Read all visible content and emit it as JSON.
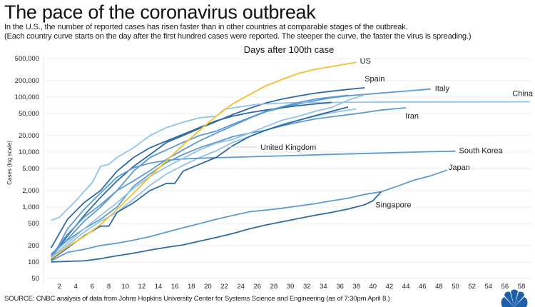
{
  "title": "The pace of the coronavirus outbreak",
  "subtitle_1": "In the U.S., the number of reported cases has risen faster than in other countries at comparable stages of the outbreak.",
  "subtitle_2": "(Each country curve starts on the day after the first hundred cases were reported. The steeper the curve, the faster the virus is spreading.)",
  "source": "SOURCE: CNBC analysis of data from Johns Hopkins University Center for Systems Science and Engineering (as of 7:30pm April 8.)",
  "logo": "NBC peacock",
  "chart_data": {
    "type": "line",
    "title": "Days after 100th case",
    "xlabel": "Days after 100th case",
    "ylabel": "Cases (log scale)",
    "y_scale": "log",
    "ylim": [
      50,
      500000
    ],
    "xlim": [
      0,
      59
    ],
    "grid": true,
    "y_ticks": [
      50,
      100,
      200,
      500,
      1000,
      2000,
      5000,
      10000,
      20000,
      50000,
      100000,
      200000,
      500000
    ],
    "y_tick_labels": [
      "50",
      "100",
      "200",
      "500",
      "1,000",
      "2,000",
      "5,000",
      "10,000",
      "20,000",
      "50,000",
      "100,000",
      "200,000",
      "500,000"
    ],
    "x_ticks": [
      2,
      4,
      6,
      8,
      10,
      12,
      14,
      16,
      18,
      20,
      22,
      24,
      26,
      28,
      30,
      32,
      34,
      36,
      38,
      40,
      42,
      44,
      46,
      48,
      50,
      52,
      54,
      56,
      58
    ],
    "colors": {
      "highlight": "#f2c33c",
      "dark": "#2f6aa3",
      "mid": "#5d9bd0",
      "light": "#92c3e8"
    },
    "series": [
      {
        "name": "US",
        "color": "#f2c33c",
        "points": [
          [
            1,
            115
          ],
          [
            3,
            190
          ],
          [
            5,
            290
          ],
          [
            7,
            480
          ],
          [
            9,
            900
          ],
          [
            11,
            1800
          ],
          [
            13,
            3600
          ],
          [
            15,
            7000
          ],
          [
            17,
            13500
          ],
          [
            19,
            25000
          ],
          [
            21,
            45000
          ],
          [
            23,
            75000
          ],
          [
            25,
            110000
          ],
          [
            27,
            160000
          ],
          [
            29,
            210000
          ],
          [
            31,
            270000
          ],
          [
            33,
            320000
          ],
          [
            35,
            360000
          ],
          [
            38,
            430000
          ]
        ]
      },
      {
        "name": "Spain",
        "color": "#2f6aa3",
        "points": [
          [
            1,
            120
          ],
          [
            3,
            300
          ],
          [
            5,
            700
          ],
          [
            7,
            1500
          ],
          [
            9,
            3000
          ],
          [
            11,
            5500
          ],
          [
            13,
            9000
          ],
          [
            15,
            15000
          ],
          [
            17,
            20000
          ],
          [
            19,
            27000
          ],
          [
            21,
            36000
          ],
          [
            23,
            48000
          ],
          [
            25,
            62000
          ],
          [
            27,
            78000
          ],
          [
            29,
            92000
          ],
          [
            31,
            105000
          ],
          [
            33,
            118000
          ],
          [
            35,
            128000
          ],
          [
            37,
            138000
          ],
          [
            39,
            148000
          ]
        ]
      },
      {
        "name": "Italy",
        "color": "#5d9bd0",
        "points": [
          [
            1,
            130
          ],
          [
            3,
            320
          ],
          [
            5,
            650
          ],
          [
            7,
            1100
          ],
          [
            9,
            2000
          ],
          [
            11,
            3000
          ],
          [
            13,
            4600
          ],
          [
            15,
            7400
          ],
          [
            17,
            11000
          ],
          [
            19,
            16000
          ],
          [
            21,
            22000
          ],
          [
            23,
            30000
          ],
          [
            25,
            41000
          ],
          [
            27,
            54000
          ],
          [
            29,
            64000
          ],
          [
            31,
            75000
          ],
          [
            33,
            86000
          ],
          [
            35,
            97000
          ],
          [
            37,
            106000
          ],
          [
            40,
            115000
          ],
          [
            43,
            125000
          ],
          [
            47,
            140000
          ]
        ]
      },
      {
        "name": "China",
        "color": "#92c3e8",
        "points": [
          [
            1,
            570
          ],
          [
            2,
            650
          ],
          [
            4,
            1300
          ],
          [
            6,
            2800
          ],
          [
            7,
            5500
          ],
          [
            8,
            6000
          ],
          [
            9,
            8000
          ],
          [
            11,
            12000
          ],
          [
            13,
            20000
          ],
          [
            15,
            28000
          ],
          [
            17,
            35000
          ],
          [
            19,
            42000
          ],
          [
            21,
            45000
          ],
          [
            22,
            60000
          ],
          [
            24,
            67000
          ],
          [
            26,
            74000
          ],
          [
            30,
            79000
          ],
          [
            40,
            81000
          ],
          [
            59,
            82000
          ]
        ]
      },
      {
        "name": "Iran",
        "color": "#5d9bd0",
        "points": [
          [
            1,
            140
          ],
          [
            3,
            250
          ],
          [
            5,
            400
          ],
          [
            7,
            600
          ],
          [
            9,
            1000
          ],
          [
            11,
            2400
          ],
          [
            13,
            4000
          ],
          [
            15,
            6500
          ],
          [
            17,
            9000
          ],
          [
            19,
            12000
          ],
          [
            21,
            15000
          ],
          [
            23,
            19000
          ],
          [
            25,
            22000
          ],
          [
            27,
            25000
          ],
          [
            29,
            30000
          ],
          [
            31,
            35000
          ],
          [
            33,
            40000
          ],
          [
            35,
            44000
          ],
          [
            38,
            50000
          ],
          [
            41,
            58000
          ],
          [
            44,
            64000
          ]
        ]
      },
      {
        "name": "United Kingdom",
        "color": "#92c3e8",
        "points": [
          [
            1,
            115
          ],
          [
            3,
            200
          ],
          [
            5,
            350
          ],
          [
            7,
            550
          ],
          [
            9,
            800
          ],
          [
            11,
            1400
          ],
          [
            13,
            2500
          ],
          [
            15,
            4000
          ],
          [
            17,
            5700
          ],
          [
            19,
            8000
          ],
          [
            21,
            10500
          ],
          [
            23,
            15000
          ],
          [
            25,
            19000
          ],
          [
            27,
            25000
          ],
          [
            29,
            32000
          ],
          [
            31,
            38000
          ],
          [
            33,
            45000
          ],
          [
            35,
            52000
          ],
          [
            38,
            61000
          ]
        ]
      },
      {
        "name": "South Korea",
        "color": "#5d9bd0",
        "points": [
          [
            1,
            110
          ],
          [
            3,
            400
          ],
          [
            5,
            900
          ],
          [
            7,
            1800
          ],
          [
            9,
            3500
          ],
          [
            11,
            5200
          ],
          [
            13,
            6300
          ],
          [
            15,
            7100
          ],
          [
            17,
            7500
          ],
          [
            19,
            7700
          ],
          [
            21,
            7900
          ],
          [
            25,
            8200
          ],
          [
            30,
            8600
          ],
          [
            35,
            9100
          ],
          [
            40,
            9500
          ],
          [
            45,
            10000
          ],
          [
            50,
            10400
          ]
        ]
      },
      {
        "name": "Japan",
        "color": "#5d9bd0",
        "points": [
          [
            1,
            105
          ],
          [
            3,
            150
          ],
          [
            5,
            170
          ],
          [
            7,
            200
          ],
          [
            9,
            220
          ],
          [
            11,
            250
          ],
          [
            13,
            290
          ],
          [
            15,
            350
          ],
          [
            17,
            420
          ],
          [
            19,
            500
          ],
          [
            21,
            600
          ],
          [
            23,
            700
          ],
          [
            25,
            820
          ],
          [
            27,
            880
          ],
          [
            29,
            950
          ],
          [
            31,
            1050
          ],
          [
            33,
            1150
          ],
          [
            35,
            1300
          ],
          [
            37,
            1450
          ],
          [
            39,
            1700
          ],
          [
            41,
            1900
          ],
          [
            43,
            2400
          ],
          [
            45,
            3100
          ],
          [
            47,
            3700
          ],
          [
            49,
            4700
          ]
        ]
      },
      {
        "name": "Singapore",
        "color": "#2f6aa3",
        "points": [
          [
            1,
            100
          ],
          [
            3,
            103
          ],
          [
            5,
            105
          ],
          [
            7,
            115
          ],
          [
            9,
            130
          ],
          [
            11,
            145
          ],
          [
            13,
            165
          ],
          [
            15,
            185
          ],
          [
            17,
            205
          ],
          [
            19,
            240
          ],
          [
            21,
            280
          ],
          [
            23,
            330
          ],
          [
            25,
            400
          ],
          [
            27,
            470
          ],
          [
            29,
            540
          ],
          [
            31,
            620
          ],
          [
            33,
            710
          ],
          [
            35,
            800
          ],
          [
            37,
            920
          ],
          [
            39,
            1100
          ],
          [
            40,
            1300
          ],
          [
            41,
            1900
          ]
        ]
      },
      {
        "color": "#2f6aa3",
        "points": [
          [
            1,
            180
          ],
          [
            3,
            600
          ],
          [
            5,
            1200
          ],
          [
            7,
            2000
          ],
          [
            9,
            4500
          ],
          [
            11,
            8000
          ],
          [
            13,
            12000
          ],
          [
            15,
            16000
          ],
          [
            17,
            21000
          ],
          [
            19,
            28000
          ],
          [
            21,
            37000
          ],
          [
            23,
            45000
          ],
          [
            25,
            52000
          ],
          [
            27,
            58000
          ],
          [
            29,
            64000
          ],
          [
            31,
            70000
          ],
          [
            33,
            75000
          ],
          [
            35,
            80000
          ]
        ]
      },
      {
        "color": "#5d9bd0",
        "points": [
          [
            1,
            130
          ],
          [
            3,
            260
          ],
          [
            5,
            550
          ],
          [
            7,
            1000
          ],
          [
            9,
            2000
          ],
          [
            11,
            4500
          ],
          [
            13,
            8000
          ],
          [
            15,
            11000
          ],
          [
            17,
            15000
          ],
          [
            19,
            20000
          ],
          [
            21,
            24000
          ],
          [
            23,
            32000
          ],
          [
            25,
            42000
          ],
          [
            27,
            55000
          ],
          [
            29,
            67000
          ],
          [
            31,
            80000
          ],
          [
            33,
            92000
          ],
          [
            35,
            100000
          ],
          [
            37,
            108000
          ]
        ]
      },
      {
        "color": "#92c3e8",
        "points": [
          [
            1,
            120
          ],
          [
            3,
            220
          ],
          [
            5,
            400
          ],
          [
            7,
            700
          ],
          [
            9,
            1200
          ],
          [
            11,
            2200
          ],
          [
            13,
            3600
          ],
          [
            15,
            5400
          ],
          [
            17,
            7700
          ],
          [
            19,
            10900
          ],
          [
            21,
            14500
          ],
          [
            23,
            17000
          ],
          [
            25,
            22000
          ],
          [
            27,
            29000
          ],
          [
            29,
            38000
          ],
          [
            31,
            45000
          ],
          [
            33,
            55000
          ],
          [
            35,
            65000
          ],
          [
            37,
            88000
          ],
          [
            39,
            110000
          ]
        ]
      },
      {
        "color": "#2f6aa3",
        "points": [
          [
            1,
            110
          ],
          [
            3,
            180
          ],
          [
            5,
            300
          ],
          [
            7,
            450
          ],
          [
            8,
            450
          ],
          [
            9,
            800
          ],
          [
            11,
            1200
          ],
          [
            13,
            2000
          ],
          [
            15,
            2700
          ],
          [
            16,
            2700
          ],
          [
            17,
            4500
          ],
          [
            19,
            6000
          ],
          [
            21,
            8000
          ],
          [
            23,
            13000
          ],
          [
            25,
            19000
          ],
          [
            27,
            25000
          ],
          [
            29,
            31000
          ],
          [
            31,
            38000
          ],
          [
            33,
            46000
          ],
          [
            35,
            55000
          ],
          [
            37,
            66000
          ]
        ]
      }
    ]
  }
}
